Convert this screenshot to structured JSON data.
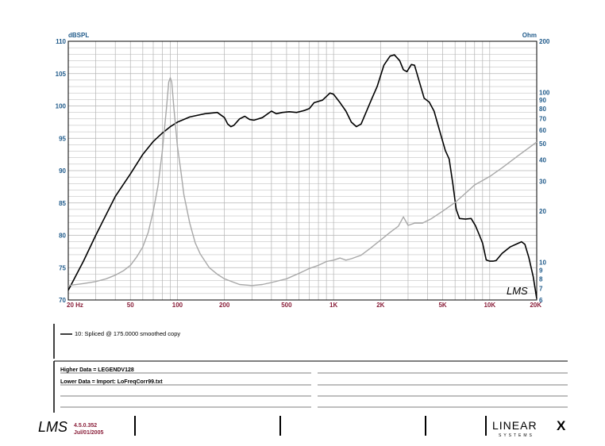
{
  "chart_data": {
    "type": "line",
    "y_left": {
      "unit": "dBSPL",
      "range": [
        70,
        110
      ],
      "scale": "linear",
      "ticks": [
        "70",
        "75",
        "80",
        "85",
        "90",
        "95",
        "100",
        "105",
        "110"
      ]
    },
    "y_right": {
      "unit": "Ohm",
      "range": [
        6,
        200
      ],
      "scale": "log",
      "ticks": [
        "6",
        "7",
        "8",
        "9",
        "10",
        "20",
        "30",
        "40",
        "50",
        "60",
        "70",
        "80",
        "90",
        "100",
        "200"
      ]
    },
    "x": {
      "range": [
        20,
        20000
      ],
      "scale": "log",
      "tick_labels": [
        {
          "v": 20,
          "label": "20  Hz"
        },
        {
          "v": 50,
          "label": "50"
        },
        {
          "v": 100,
          "label": "100"
        },
        {
          "v": 200,
          "label": "200"
        },
        {
          "v": 500,
          "label": "500"
        },
        {
          "v": 1000,
          "label": "1K"
        },
        {
          "v": 2000,
          "label": "2K"
        },
        {
          "v": 5000,
          "label": "5K"
        },
        {
          "v": 10000,
          "label": "10K"
        },
        {
          "v": 20000,
          "label": "20K"
        }
      ]
    },
    "grid": true,
    "series": [
      {
        "name": "10: Spliced @ 175.0000 smoothed copy",
        "axis": "left",
        "color": "#000000",
        "points": [
          [
            20,
            71.5
          ],
          [
            25,
            76
          ],
          [
            30,
            80
          ],
          [
            40,
            86
          ],
          [
            50,
            89.5
          ],
          [
            60,
            92.5
          ],
          [
            70,
            94.5
          ],
          [
            80,
            95.8
          ],
          [
            90,
            96.8
          ],
          [
            100,
            97.5
          ],
          [
            120,
            98.3
          ],
          [
            150,
            98.8
          ],
          [
            180,
            99
          ],
          [
            200,
            98.2
          ],
          [
            210,
            97.2
          ],
          [
            220,
            96.8
          ],
          [
            230,
            97
          ],
          [
            250,
            98
          ],
          [
            270,
            98.4
          ],
          [
            290,
            97.9
          ],
          [
            310,
            97.8
          ],
          [
            350,
            98.2
          ],
          [
            400,
            99.2
          ],
          [
            430,
            98.8
          ],
          [
            470,
            99
          ],
          [
            520,
            99.1
          ],
          [
            580,
            99
          ],
          [
            650,
            99.3
          ],
          [
            700,
            99.6
          ],
          [
            750,
            100.5
          ],
          [
            850,
            100.9
          ],
          [
            950,
            102
          ],
          [
            1000,
            101.8
          ],
          [
            1100,
            100.5
          ],
          [
            1200,
            99.2
          ],
          [
            1300,
            97.5
          ],
          [
            1400,
            96.8
          ],
          [
            1500,
            97.2
          ],
          [
            1600,
            98.8
          ],
          [
            1750,
            101
          ],
          [
            1900,
            103
          ],
          [
            2100,
            106.3
          ],
          [
            2300,
            107.7
          ],
          [
            2450,
            107.9
          ],
          [
            2650,
            107
          ],
          [
            2800,
            105.6
          ],
          [
            2950,
            105.3
          ],
          [
            3150,
            106.4
          ],
          [
            3300,
            106.3
          ],
          [
            3500,
            104.2
          ],
          [
            3800,
            101.2
          ],
          [
            4100,
            100.6
          ],
          [
            4400,
            99.2
          ],
          [
            4800,
            96
          ],
          [
            5200,
            93.1
          ],
          [
            5500,
            91.8
          ],
          [
            5800,
            88
          ],
          [
            6100,
            84
          ],
          [
            6400,
            82.6
          ],
          [
            7000,
            82.5
          ],
          [
            7600,
            82.6
          ],
          [
            8100,
            81.5
          ],
          [
            8600,
            80
          ],
          [
            9000,
            78.8
          ],
          [
            9500,
            76.2
          ],
          [
            10000,
            76
          ],
          [
            10500,
            76
          ],
          [
            11000,
            76.1
          ],
          [
            12000,
            77.2
          ],
          [
            13500,
            78.2
          ],
          [
            15000,
            78.7
          ],
          [
            16000,
            79
          ],
          [
            16800,
            78.6
          ],
          [
            17800,
            76.6
          ],
          [
            19000,
            73.6
          ],
          [
            20000,
            70.2
          ]
        ]
      },
      {
        "axis": "right",
        "color": "#a8a8a8",
        "points": [
          [
            20,
            7.3
          ],
          [
            25,
            7.5
          ],
          [
            30,
            7.7
          ],
          [
            35,
            8.0
          ],
          [
            40,
            8.4
          ],
          [
            45,
            8.9
          ],
          [
            50,
            9.6
          ],
          [
            55,
            10.8
          ],
          [
            60,
            12.3
          ],
          [
            65,
            15
          ],
          [
            70,
            20
          ],
          [
            75,
            28
          ],
          [
            80,
            45
          ],
          [
            85,
            80
          ],
          [
            88,
            115
          ],
          [
            90,
            122
          ],
          [
            92,
            115
          ],
          [
            95,
            80
          ],
          [
            100,
            48
          ],
          [
            105,
            35
          ],
          [
            110,
            25
          ],
          [
            120,
            17
          ],
          [
            130,
            13
          ],
          [
            140,
            11.2
          ],
          [
            160,
            9.3
          ],
          [
            180,
            8.5
          ],
          [
            200,
            8.0
          ],
          [
            250,
            7.4
          ],
          [
            300,
            7.3
          ],
          [
            350,
            7.4
          ],
          [
            400,
            7.6
          ],
          [
            500,
            8.0
          ],
          [
            600,
            8.6
          ],
          [
            700,
            9.2
          ],
          [
            800,
            9.6
          ],
          [
            900,
            10.1
          ],
          [
            1000,
            10.3
          ],
          [
            1100,
            10.6
          ],
          [
            1200,
            10.3
          ],
          [
            1300,
            10.5
          ],
          [
            1500,
            11
          ],
          [
            1700,
            12
          ],
          [
            2000,
            13.5
          ],
          [
            2300,
            15
          ],
          [
            2600,
            16.3
          ],
          [
            2800,
            18.5
          ],
          [
            3000,
            16.5
          ],
          [
            3300,
            17
          ],
          [
            3700,
            17
          ],
          [
            4200,
            18
          ],
          [
            5000,
            20
          ],
          [
            6000,
            22.5
          ],
          [
            7000,
            25.5
          ],
          [
            8000,
            28.5
          ],
          [
            10000,
            32
          ],
          [
            12000,
            36
          ],
          [
            15000,
            42
          ],
          [
            20000,
            51
          ]
        ]
      }
    ]
  },
  "labels": {
    "y_left_unit": "dBSPL",
    "y_right_unit": "Ohm",
    "legend_text": "10: Spliced @ 175.0000 smoothed copy",
    "higher_data": "Higher Data = LEGENDV128",
    "lower_data": "Lower  Data = Import: LoFreqCorr99.txt",
    "watermark": "LMS",
    "version": "4.5.0.352",
    "date": "Jul/01/2005",
    "footer_logo": "LMS",
    "brand_name": "LINEAR",
    "brand_x": "X",
    "brand_sub": "SYSTEMS"
  },
  "colors": {
    "grid": "#b4b4b4",
    "axis_left_text": "#1f5a8a",
    "axis_bottom_text": "#8a1f3a"
  }
}
